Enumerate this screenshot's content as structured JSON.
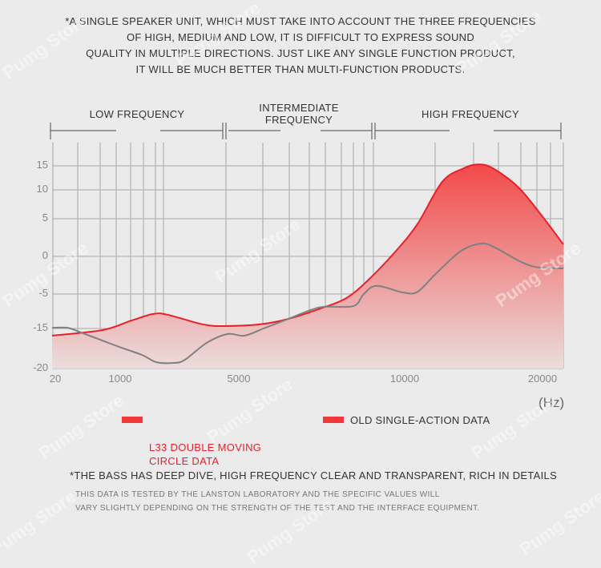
{
  "intro": [
    "*A SINGLE SPEAKER UNIT, WHICH MUST TAKE INTO ACCOUNT THE THREE FREQUENCIES",
    "OF HIGH, MEDIUM AND LOW, IT IS DIFFICULT TO EXPRESS SOUND",
    "QUALITY IN MULTIPLE DIRECTIONS. JUST LIKE ANY SINGLE FUNCTION PRODUCT,",
    "IT WILL BE MUCH BETTER THAN MULTI-FUNCTION PRODUCTS."
  ],
  "bands": {
    "low": "LOW FREQUENCY",
    "mid_line1": "INTERMEDIATE",
    "mid_line2": "FREQUENCY",
    "high": "HIGH FREQUENCY"
  },
  "watermark": "Pumg Store",
  "chart_data": {
    "type": "area",
    "title": "",
    "xlabel": "(Hz)",
    "ylabel": "",
    "x_ticks": [
      "20",
      "1000",
      "5000",
      "10000",
      "20000"
    ],
    "y_ticks": [
      "15",
      "10",
      "5",
      "0",
      "-5",
      "-15",
      "-20"
    ],
    "xlim": [
      20,
      22000
    ],
    "ylim": [
      -20,
      15
    ],
    "grid": true,
    "legend_position": "bottom",
    "series": [
      {
        "name": "L33 DOUBLE MOVING CIRCLE DATA",
        "color": "#e8202a",
        "filled": true,
        "x": [
          32,
          746,
          1378,
          2107,
          2593,
          3781,
          4510,
          5652,
          6497,
          7463,
          8236,
          8888,
          9734,
          10930,
          12731,
          14299,
          15345,
          16391,
          18192,
          19768,
          22000
        ],
        "y": [
          -15.9,
          -15.2,
          -12.7,
          -10.8,
          -11.0,
          -13.8,
          -14.3,
          -13.8,
          -12.2,
          -9.2,
          -6.2,
          -3.2,
          0.7,
          4.3,
          11.7,
          14.5,
          15.3,
          14.5,
          10.7,
          6.1,
          1.6
        ]
      },
      {
        "name": "OLD SINGLE-ACTION DATA",
        "color": "#808080",
        "filled": false,
        "x": [
          32,
          239,
          435,
          954,
          1729,
          2215,
          2809,
          3187,
          3916,
          4618,
          5169,
          5749,
          6497,
          7150,
          7584,
          8454,
          8768,
          9155,
          9952,
          10930,
          12208,
          14067,
          15578,
          16624,
          18192,
          19477,
          22000
        ],
        "y": [
          -14.8,
          -14.8,
          -15.5,
          -17.2,
          -18.3,
          -19.2,
          -19.3,
          -18.9,
          -16.8,
          -15.7,
          -15.9,
          -15.0,
          -12.2,
          -9.7,
          -8.7,
          -8.5,
          -5.0,
          -3.9,
          -4.8,
          -4.7,
          -2.4,
          0.7,
          1.7,
          1.1,
          -0.5,
          -1.4,
          -1.6
        ]
      }
    ]
  },
  "legend": {
    "item1": "L33 DOUBLE MOVING\nCIRCLE DATA",
    "item1_color": "#e8202a",
    "item2": "OLD SINGLE-ACTION DATA",
    "swatch_color": "#f03a3a"
  },
  "footer": {
    "note": "*THE BASS HAS DEEP DIVE, HIGH FREQUENCY CLEAR AND TRANSPARENT, RICH IN DETAILS",
    "small1": "THIS DATA IS TESTED BY THE LANSTON LABORATORY AND THE SPECIFIC VALUES WILL",
    "small2": "VARY SLIGHTLY DEPENDING ON THE STRENGTH OF THE TEST AND THE INTERFACE EQUIPMENT."
  }
}
